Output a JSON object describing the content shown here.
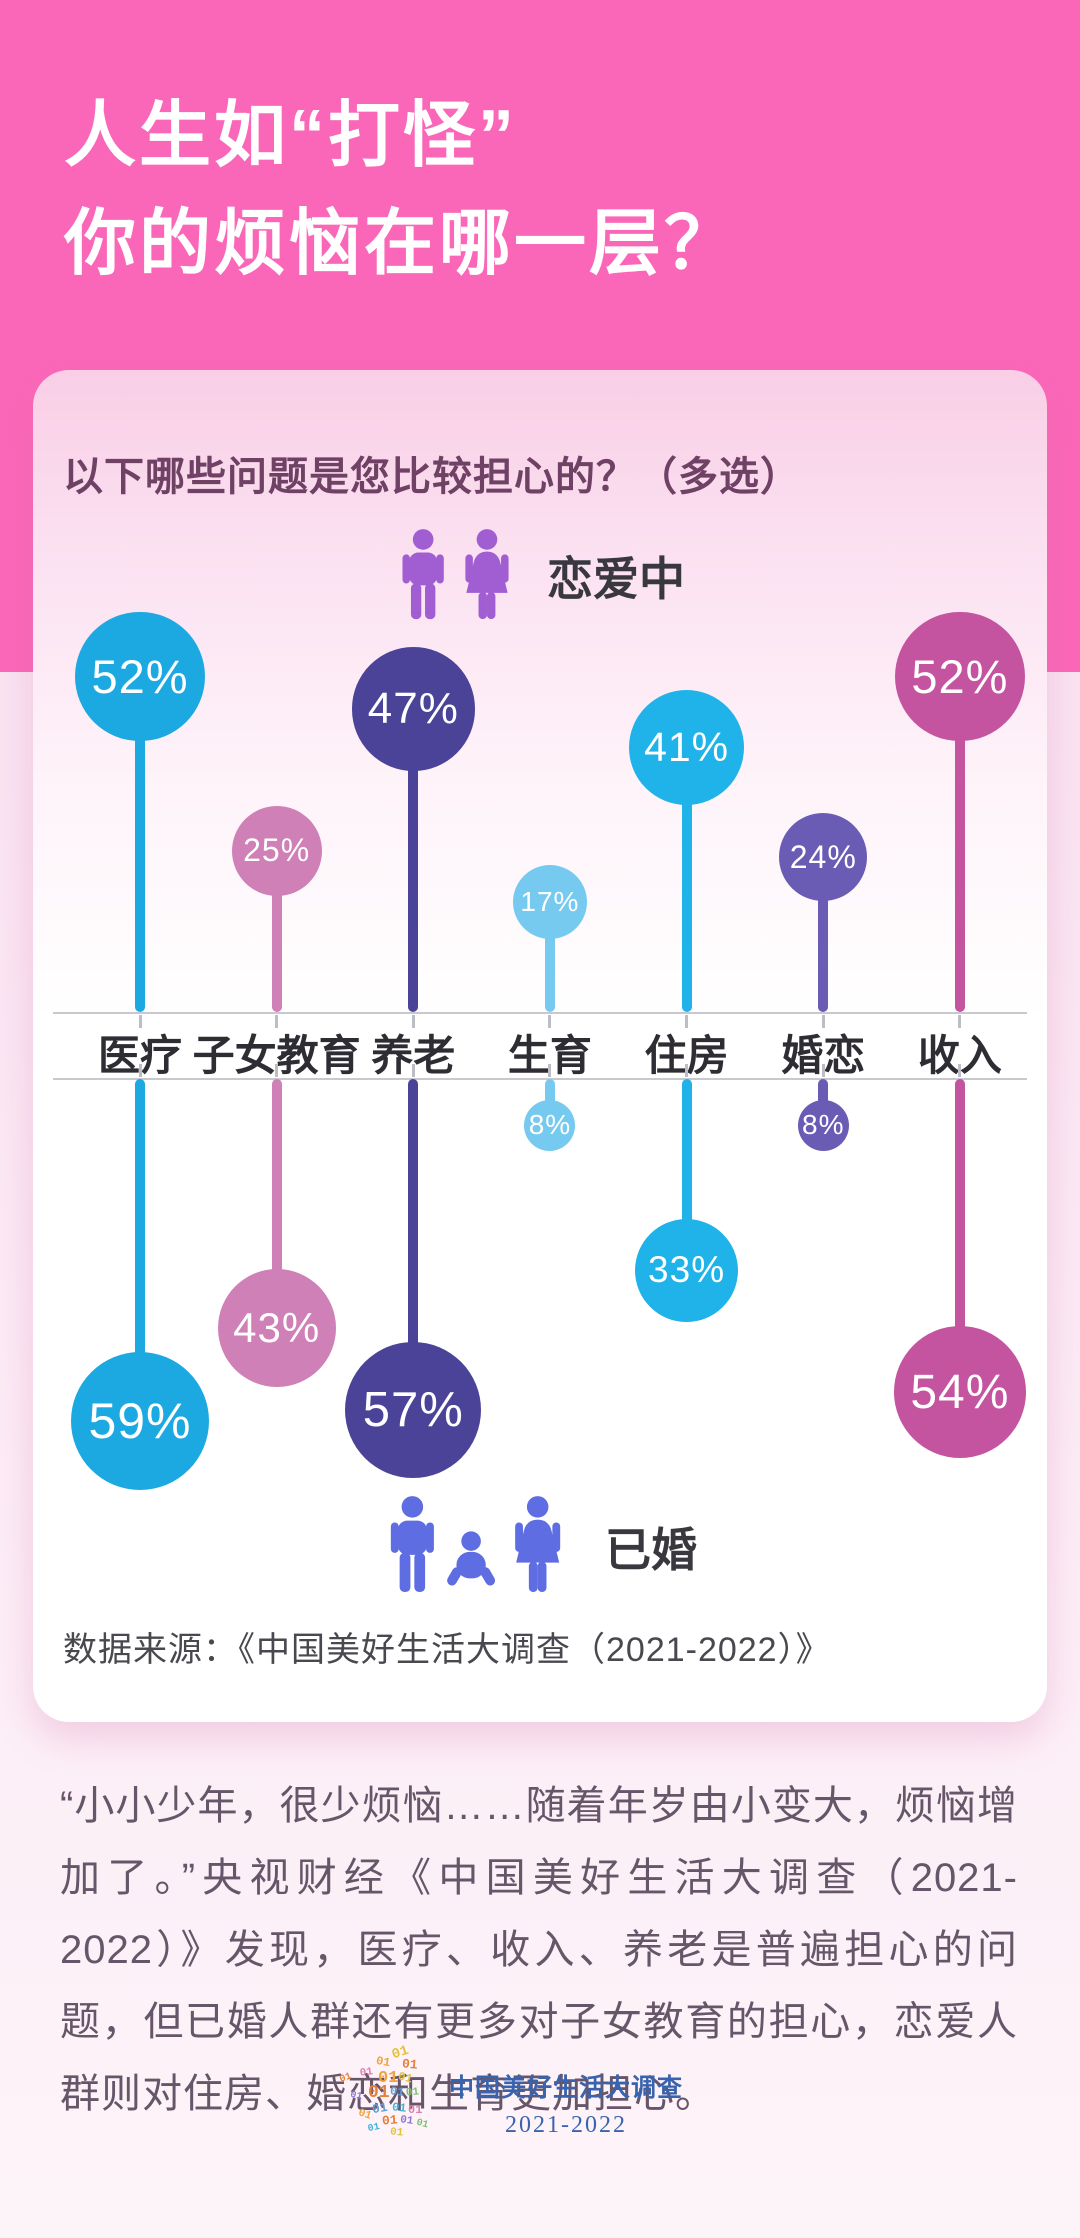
{
  "header": {
    "title_line1": "人生如“打怪”",
    "title_line2": "你的烦恼在哪一层？"
  },
  "card": {
    "question": "以下哪些问题是您比较担心的？（多选）",
    "legend_top": {
      "label": "恋爱中",
      "icon": "couple-icon",
      "icon_color": "#a05ed2"
    },
    "legend_bottom": {
      "label": "已婚",
      "icon": "family-icon",
      "icon_color": "#5f6de2"
    },
    "source": "数据来源：《中国美好生活大调查（2021-2022）》"
  },
  "chart_data": {
    "type": "lollipop",
    "orientation": "diverging-vertical",
    "unit": "%",
    "categories": [
      "医疗",
      "子女教育",
      "养老",
      "生育",
      "住房",
      "婚恋",
      "收入"
    ],
    "category_colors": [
      "#1ca9e1",
      "#cf80b6",
      "#4b4398",
      "#76caf0",
      "#20b3e9",
      "#6a5bb5",
      "#c4549f"
    ],
    "series": [
      {
        "name": "恋爱中",
        "position": "above-axis",
        "values": [
          52,
          25,
          47,
          17,
          41,
          24,
          52
        ]
      },
      {
        "name": "已婚",
        "position": "below-axis",
        "values": [
          59,
          43,
          57,
          8,
          33,
          8,
          54
        ]
      }
    ],
    "value_range": [
      0,
      60
    ],
    "grid": false,
    "legend_position": "above-and-below"
  },
  "paragraph": "“小小少年，很少烦恼……随着年岁由小变大，烦恼增加了。”央视财经《中国美好生活大调查（2021-2022）》发现，医疗、收入、养老是普遍担心的问题，但已婚人群还有更多对子女教育的担心，恋爱人群则对住房、婚恋和生育更加担心。",
  "footer": {
    "logo_title": "中国美好生活大调查",
    "logo_years": "2021-2022",
    "logo_map_icon": "binary-china-map",
    "logo_bit": "01"
  },
  "colors": {
    "header_pink": "#fb67b8",
    "page_background": "#fae3f1",
    "card_top": "#f9cee6",
    "question_text": "#6e4165",
    "axis_line": "#c8c8ce",
    "footer_blue": "#3a63ad"
  }
}
